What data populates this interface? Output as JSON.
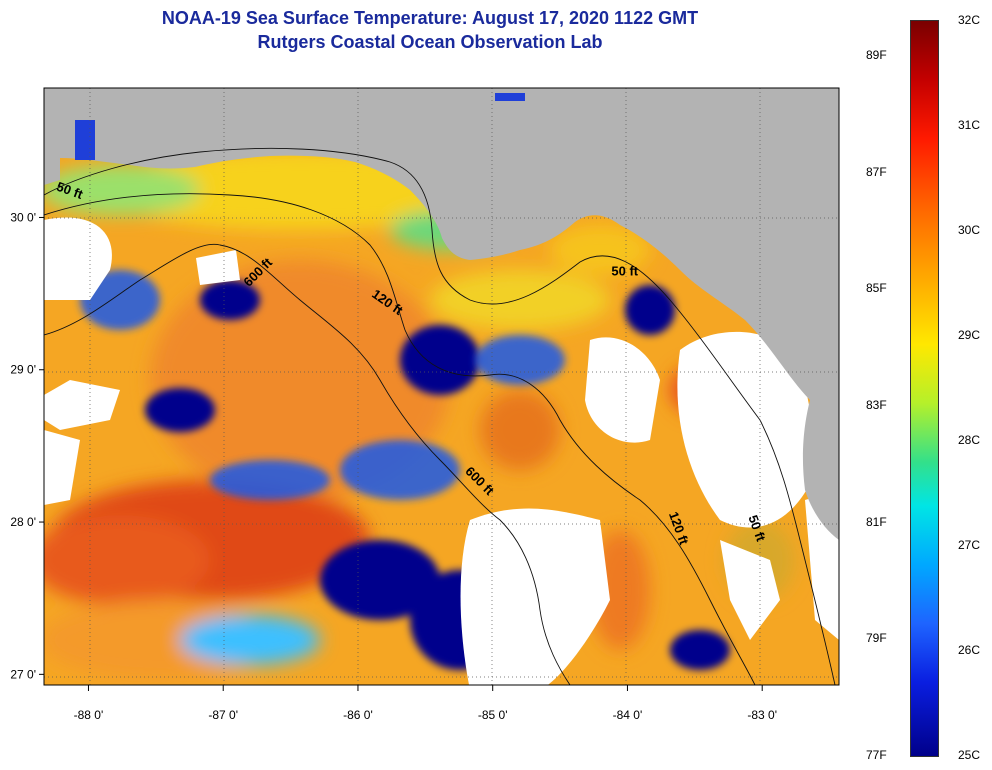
{
  "title_line1": "NOAA-19 Sea Surface Temperature:  August 17, 2020 1122 GMT",
  "title_line2": "Rutgers Coastal Ocean Observation Lab",
  "map": {
    "lon_ticks": [
      {
        "value": -88,
        "label": "-88 0'"
      },
      {
        "value": -87,
        "label": "-87 0'"
      },
      {
        "value": -86,
        "label": "-86 0'"
      },
      {
        "value": -85,
        "label": "-85 0'"
      },
      {
        "value": -84,
        "label": "-84 0'"
      },
      {
        "value": -83,
        "label": "-83 0'"
      }
    ],
    "lat_ticks": [
      {
        "value": 30,
        "label": "30 0'"
      },
      {
        "value": 29,
        "label": "29 0'"
      },
      {
        "value": 28,
        "label": "28 0'"
      },
      {
        "value": 27,
        "label": "27 0'"
      }
    ],
    "lon_range": [
      -88.33,
      -82.43
    ],
    "lat_range": [
      26.93,
      30.85
    ],
    "depth_labels": [
      {
        "text": "50 ft",
        "lon": -88.15,
        "lat": 30.15,
        "rotate": 20
      },
      {
        "text": "600 ft",
        "lon": -86.72,
        "lat": 29.62,
        "rotate": -45
      },
      {
        "text": "120 ft",
        "lon": -85.8,
        "lat": 29.42,
        "rotate": 35
      },
      {
        "text": "50 ft",
        "lon": -84.02,
        "lat": 29.62,
        "rotate": 0
      },
      {
        "text": "600 ft",
        "lon": -85.12,
        "lat": 28.25,
        "rotate": 45
      },
      {
        "text": "120 ft",
        "lon": -83.65,
        "lat": 27.95,
        "rotate": 70
      },
      {
        "text": "50 ft",
        "lon": -83.07,
        "lat": 27.95,
        "rotate": 70
      }
    ],
    "colors": {
      "land": "#b3b3b3",
      "cloud": "#ffffff",
      "warm": "#e8501a",
      "mid": "#f7b318",
      "cool": "#1f3fd8",
      "cold": "#00068c"
    }
  },
  "colorbar": {
    "range_c": [
      25,
      32
    ],
    "range_f": [
      77,
      89.6
    ],
    "f_labels": [
      "89F",
      "87F",
      "85F",
      "83F",
      "81F",
      "79F",
      "77F"
    ],
    "c_labels": [
      "32C",
      "31C",
      "30C",
      "29C",
      "28C",
      "27C",
      "26C",
      "25C"
    ]
  }
}
